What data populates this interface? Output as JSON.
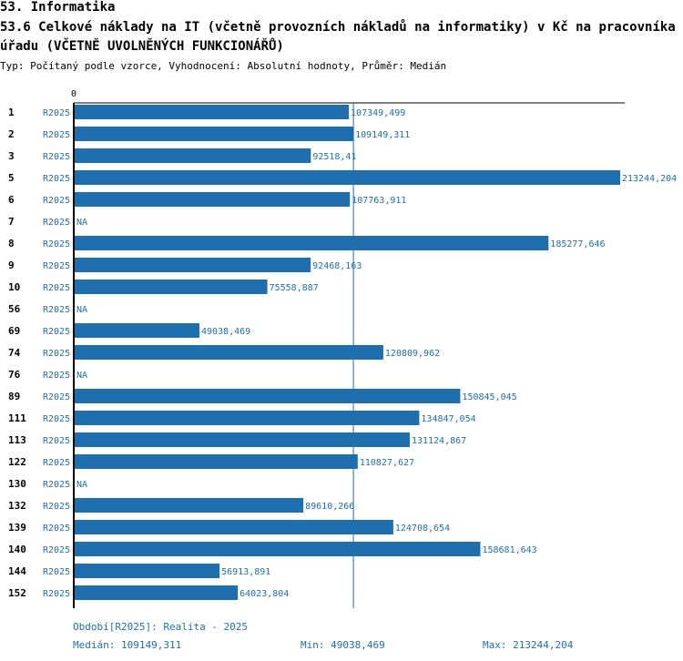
{
  "header": {
    "section": "53. Informatika",
    "title": "53.6 Celkové náklady na IT (včetně provozních nákladů na informatiky) v Kč na pracovníka úřadu (VČETNĚ UVOLNĚNÝCH FUNKCIONÁŘŮ)",
    "subtitle": "Typ: Počítaný podle vzorce, Vyhodnocení: Absolutní hodnoty, Průměr: Medián"
  },
  "chart_data": {
    "type": "bar",
    "orientation": "horizontal",
    "zero_label": "0",
    "series_label": "R2025",
    "na_label": "NA",
    "median": 109149.311,
    "max_axis": 213244.204,
    "bar_color": "#1f6fae",
    "label_color": "#1f6fae",
    "rows": [
      {
        "id": "1",
        "value": 107349.499,
        "label": "107349,499"
      },
      {
        "id": "2",
        "value": 109149.311,
        "label": "109149,311"
      },
      {
        "id": "3",
        "value": 92518.41,
        "label": "92518,41"
      },
      {
        "id": "5",
        "value": 213244.204,
        "label": "213244,204"
      },
      {
        "id": "6",
        "value": 107763.911,
        "label": "107763,911"
      },
      {
        "id": "7",
        "value": null,
        "label": "NA"
      },
      {
        "id": "8",
        "value": 185277.646,
        "label": "185277,646"
      },
      {
        "id": "9",
        "value": 92468.163,
        "label": "92468,163"
      },
      {
        "id": "10",
        "value": 75558.887,
        "label": "75558,887"
      },
      {
        "id": "56",
        "value": null,
        "label": "NA"
      },
      {
        "id": "69",
        "value": 49038.469,
        "label": "49038,469"
      },
      {
        "id": "74",
        "value": 120809.962,
        "label": "120809,962"
      },
      {
        "id": "76",
        "value": null,
        "label": "NA"
      },
      {
        "id": "89",
        "value": 150845.045,
        "label": "150845,045"
      },
      {
        "id": "111",
        "value": 134847.054,
        "label": "134847,054"
      },
      {
        "id": "113",
        "value": 131124.867,
        "label": "131124,867"
      },
      {
        "id": "122",
        "value": 110827.627,
        "label": "110827,627"
      },
      {
        "id": "130",
        "value": null,
        "label": "NA"
      },
      {
        "id": "132",
        "value": 89610.266,
        "label": "89610,266"
      },
      {
        "id": "139",
        "value": 124708.654,
        "label": "124708,654"
      },
      {
        "id": "140",
        "value": 158681.643,
        "label": "158681,643"
      },
      {
        "id": "144",
        "value": 56913.891,
        "label": "56913,891"
      },
      {
        "id": "152",
        "value": 64023.804,
        "label": "64023,804"
      }
    ]
  },
  "footer": {
    "period": "Období[R2025]: Realita - 2025",
    "median": "Medián: 109149,311",
    "min": "Min: 49038,469",
    "max": "Max: 213244,204"
  }
}
